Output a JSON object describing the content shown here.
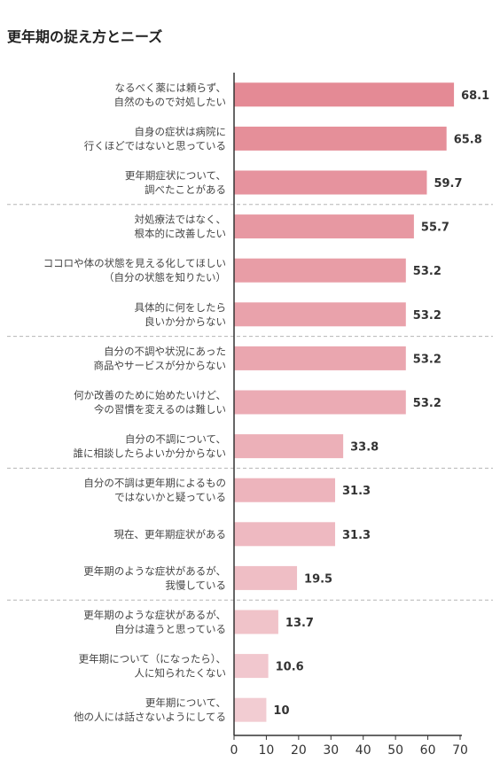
{
  "chart_data": {
    "type": "bar",
    "orientation": "horizontal",
    "title": "更年期の捉え方とニーズ",
    "categories": [
      [
        "なるべく薬には頼らず、",
        "自然のもので対処したい"
      ],
      [
        "自身の症状は病院に",
        "行くほどではないと思っている"
      ],
      [
        "更年期症状について、",
        "調べたことがある"
      ],
      [
        "対処療法ではなく、",
        "根本的に改善したい"
      ],
      [
        "ココロや体の状態を見える化してほしい",
        "（自分の状態を知りたい）"
      ],
      [
        "具体的に何をしたら",
        "良いか分からない"
      ],
      [
        "自分の不調や状況にあった",
        "商品やサービスが分からない"
      ],
      [
        "何か改善のために始めたいけど、",
        "今の習慣を変えるのは難しい"
      ],
      [
        "自分の不調について、",
        "誰に相談したらよいか分からない"
      ],
      [
        "自分の不調は更年期によるもの",
        "ではないかと疑っている"
      ],
      [
        "現在、更年期症状がある"
      ],
      [
        "更年期のような症状があるが、",
        "我慢している"
      ],
      [
        "更年期のような症状があるが、",
        "自分は違うと思っている"
      ],
      [
        "更年期について（になったら）、",
        "人に知られたくない"
      ],
      [
        "更年期について、",
        "他の人には話さないようにしてる"
      ]
    ],
    "values": [
      68.1,
      65.8,
      59.7,
      55.7,
      53.2,
      53.2,
      53.2,
      53.2,
      33.8,
      31.3,
      31.3,
      19.5,
      13.7,
      10.6,
      10
    ],
    "value_labels": [
      "68.1",
      "65.8",
      "59.7",
      "55.7",
      "53.2",
      "53.2",
      "53.2",
      "53.2",
      "33.8",
      "31.3",
      "31.3",
      "19.5",
      "13.7",
      "10.6",
      "10"
    ],
    "xlim": [
      0,
      70
    ],
    "xticks": [
      0,
      10,
      20,
      30,
      40,
      50,
      60,
      70
    ],
    "group_separators_after": [
      2,
      5,
      8,
      11
    ],
    "bar_color_start": "#e48a95",
    "bar_color_end": "#f2ccd2",
    "grid": false
  }
}
